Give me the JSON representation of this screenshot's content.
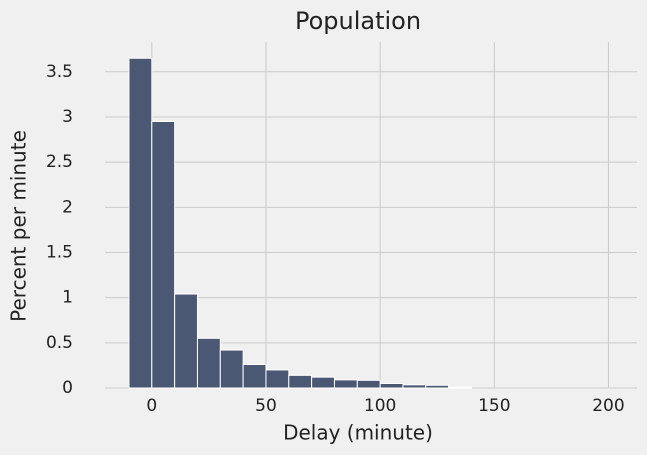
{
  "chart_data": {
    "type": "histogram",
    "title": "Population",
    "x_label": "Delay (minute)",
    "y_label": "Percent per minute",
    "bins": [
      -10,
      0,
      10,
      20,
      30,
      40,
      50,
      60,
      70,
      80,
      90,
      100,
      110,
      120,
      130,
      140
    ],
    "values": [
      3.65,
      2.95,
      1.04,
      0.55,
      0.42,
      0.26,
      0.2,
      0.14,
      0.12,
      0.09,
      0.085,
      0.05,
      0.035,
      0.03,
      0.01
    ],
    "color": "#4b5874",
    "xlim": [
      -20.5,
      212.5
    ],
    "xticks": [
      0,
      50,
      100,
      150,
      200
    ],
    "ylim": [
      0,
      3.83
    ],
    "yticks": [
      0,
      0.5,
      1,
      1.5,
      2,
      2.5,
      3,
      3.5
    ],
    "grid": true
  }
}
